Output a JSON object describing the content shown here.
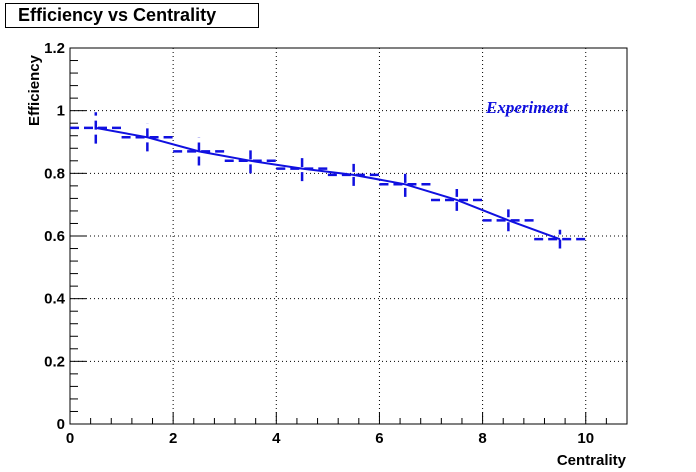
{
  "chart_data": {
    "type": "line",
    "title": "Efficiency vs Centrality",
    "xlabel": "Centrality",
    "ylabel": "Efficiency",
    "xlim": [
      0,
      10.8
    ],
    "ylim": [
      0,
      1.2
    ],
    "xticks": [
      0,
      2,
      4,
      6,
      8,
      10
    ],
    "yticks": [
      0,
      0.2,
      0.4,
      0.6,
      0.8,
      1,
      1.2
    ],
    "grid": true,
    "annotation": "Experiment",
    "series_color": "#1010e0",
    "series": [
      {
        "x": [
          0.5,
          1.5,
          2.5,
          3.5,
          4.5,
          5.5,
          6.5,
          7.5,
          8.5,
          9.5
        ],
        "y": [
          0.945,
          0.915,
          0.87,
          0.84,
          0.815,
          0.795,
          0.765,
          0.715,
          0.65,
          0.59
        ],
        "xerr": [
          0.5,
          0.5,
          0.5,
          0.5,
          0.5,
          0.5,
          0.5,
          0.5,
          0.5,
          0.5
        ],
        "yerr": [
          0.05,
          0.045,
          0.045,
          0.04,
          0.04,
          0.035,
          0.04,
          0.035,
          0.035,
          0.03
        ]
      }
    ]
  }
}
